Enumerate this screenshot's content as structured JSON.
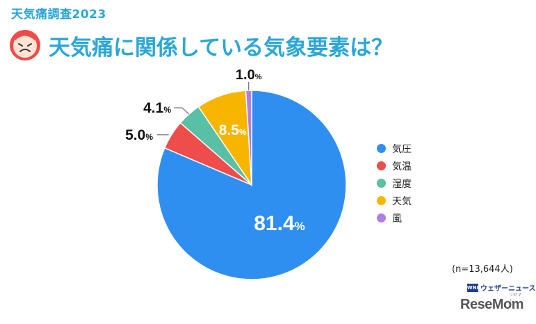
{
  "header": {
    "survey_label": "天気痛調査2023",
    "title": "天気痛に関係している気象要素は？"
  },
  "chart_data": {
    "type": "pie",
    "title": "天気痛に関係している気象要素は？",
    "categories": [
      "気圧",
      "気温",
      "湿度",
      "天気",
      "風"
    ],
    "values": [
      81.4,
      5.0,
      4.1,
      8.5,
      1.0
    ],
    "value_labels": [
      "81.4",
      "5.0",
      "4.1",
      "8.5",
      "1.0"
    ],
    "unit": "%",
    "colors": [
      "#2f8ff0",
      "#ef4c4c",
      "#58c0a4",
      "#f7b500",
      "#b07ee8"
    ],
    "legend_position": "right",
    "sample_note": "(n=13,644人)"
  },
  "footer": {
    "source_logo_text": "ウェザーニュース",
    "source_badge": "WNI",
    "brand": "ReseMom",
    "brand_ruby": "リセマム"
  }
}
